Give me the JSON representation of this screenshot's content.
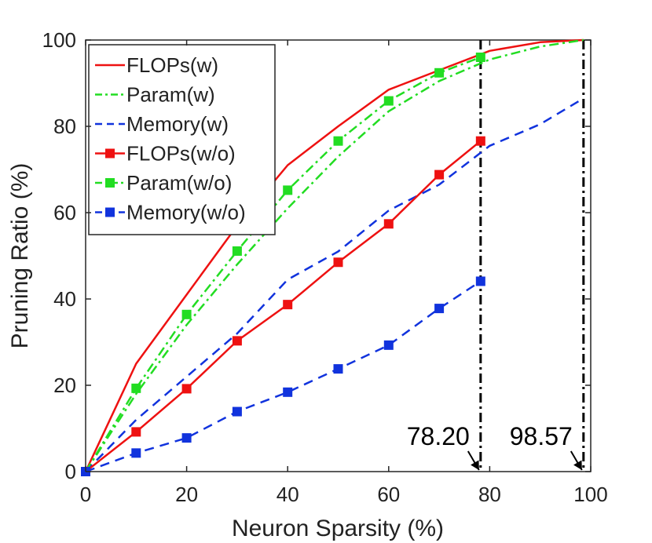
{
  "chart_data": {
    "type": "line",
    "title": "",
    "xlabel": "Neuron Sparsity (%)",
    "ylabel": "Pruning Ratio (%)",
    "xlim": [
      0,
      100
    ],
    "ylim": [
      0,
      100
    ],
    "xticks": [
      0,
      20,
      40,
      60,
      80,
      100
    ],
    "yticks": [
      0,
      20,
      40,
      60,
      80,
      100
    ],
    "grid": false,
    "legend_position": "top-left",
    "series": [
      {
        "name": "FLOPs(w)",
        "color": "#ee1111",
        "style": "solid",
        "marker": "none",
        "x": [
          0,
          10,
          20,
          30,
          40,
          50,
          60,
          70,
          80,
          90,
          98.57
        ],
        "y": [
          0,
          25,
          41,
          57,
          71,
          80,
          88.5,
          93,
          97.5,
          99.5,
          100
        ]
      },
      {
        "name": "Param(w)",
        "color": "#22dd22",
        "style": "dashdot",
        "marker": "none",
        "x": [
          0,
          10,
          20,
          30,
          40,
          50,
          60,
          70,
          80,
          90,
          98.57
        ],
        "y": [
          0,
          18,
          34,
          48,
          61,
          73,
          83.5,
          90.5,
          95.5,
          98.5,
          100
        ]
      },
      {
        "name": "Memory(w)",
        "color": "#1133dd",
        "style": "dashed",
        "marker": "none",
        "x": [
          0,
          10,
          20,
          30,
          40,
          50,
          60,
          70,
          80,
          90,
          98.57
        ],
        "y": [
          0,
          12,
          22,
          32,
          44.5,
          51,
          60.5,
          66.5,
          75.5,
          80.5,
          86.5
        ]
      },
      {
        "name": "FLOPs(w/o)",
        "color": "#ee1111",
        "style": "solid",
        "marker": "square",
        "x": [
          0,
          10,
          20,
          30,
          40,
          50,
          60,
          70,
          78.2
        ],
        "y": [
          0,
          9.2,
          19.2,
          30.3,
          38.7,
          48.5,
          57.4,
          68.8,
          76.6
        ]
      },
      {
        "name": "Param(w/o)",
        "color": "#22dd22",
        "style": "dashdot",
        "marker": "square",
        "x": [
          0,
          10,
          20,
          30,
          40,
          50,
          60,
          70,
          78.2
        ],
        "y": [
          0,
          19.3,
          36.4,
          51.1,
          65.2,
          76.6,
          85.9,
          92.4,
          96.0
        ]
      },
      {
        "name": "Memory(w/o)",
        "color": "#1133dd",
        "style": "dashed",
        "marker": "square",
        "x": [
          0,
          10,
          20,
          30,
          40,
          50,
          60,
          70,
          78.2
        ],
        "y": [
          0,
          4.3,
          7.8,
          13.9,
          18.4,
          23.8,
          29.3,
          37.8,
          44.1
        ]
      }
    ],
    "annotations": [
      {
        "label": "78.20",
        "x": 78.2
      },
      {
        "label": "98.57",
        "x": 98.57
      }
    ]
  }
}
